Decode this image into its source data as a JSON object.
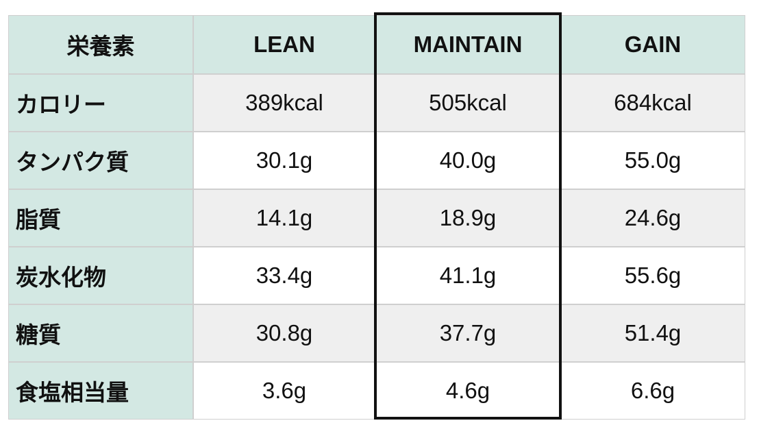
{
  "table": {
    "header": [
      "栄養素",
      "LEAN",
      "MAINTAIN",
      "GAIN"
    ],
    "rows": [
      [
        "カロリー",
        "389kcal",
        "505kcal",
        "684kcal"
      ],
      [
        "タンパク質",
        "30.1g",
        "40.0g",
        "55.0g"
      ],
      [
        "脂質",
        "14.1g",
        "18.9g",
        "24.6g"
      ],
      [
        "炭水化物",
        "33.4g",
        "41.1g",
        "55.6g"
      ],
      [
        "糖質",
        "30.8g",
        "37.7g",
        "51.4g"
      ],
      [
        "食塩相当量",
        "3.6g",
        "4.6g",
        "6.6g"
      ]
    ]
  }
}
